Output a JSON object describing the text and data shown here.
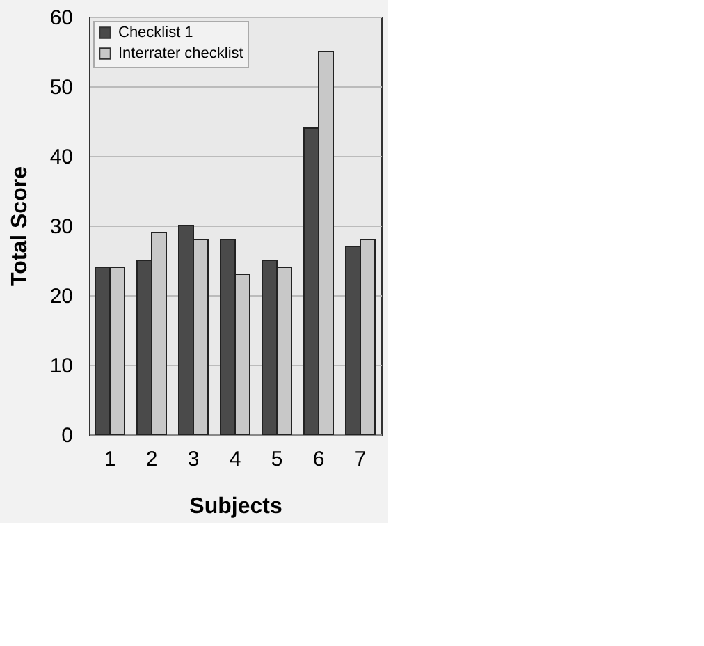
{
  "chart_data": {
    "type": "bar",
    "xlabel": "Subjects",
    "ylabel": "Total Score",
    "categories": [
      "1",
      "2",
      "3",
      "4",
      "5",
      "6",
      "7"
    ],
    "series": [
      {
        "name": "Checklist 1",
        "color": "#4a4a4a",
        "values": [
          24,
          25,
          30,
          28,
          25,
          44,
          27
        ]
      },
      {
        "name": "Interrater checklist",
        "color": "#c8c8c8",
        "values": [
          24,
          29,
          28,
          23,
          24,
          55,
          28
        ]
      }
    ],
    "ylim": [
      0,
      60
    ],
    "yticks": [
      0,
      10,
      20,
      30,
      40,
      50,
      60
    ],
    "grid": "y",
    "legend": "top left"
  }
}
